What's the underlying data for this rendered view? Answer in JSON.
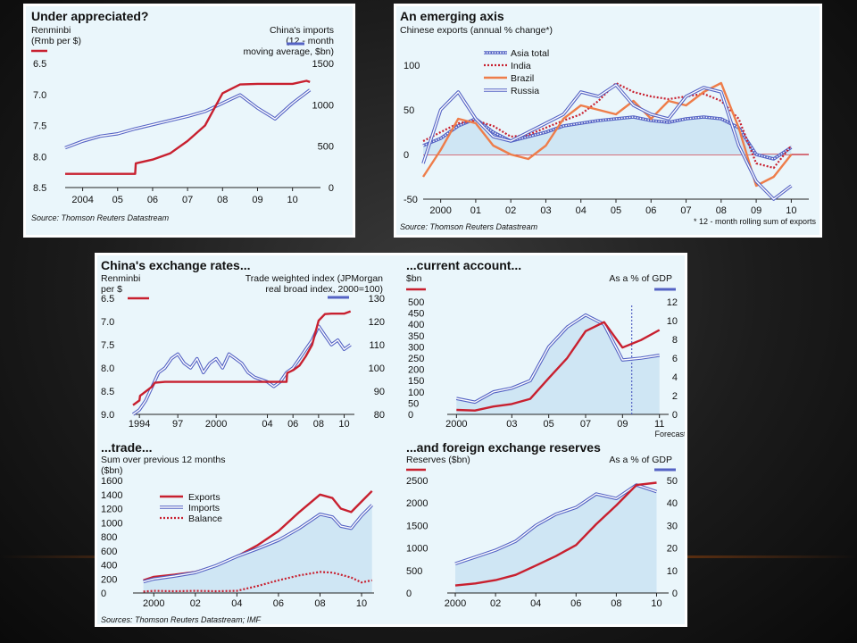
{
  "colors": {
    "red": "#c8202f",
    "blue": "#5463c4",
    "orange": "#ee7d4a",
    "fill": "#cfe6f4",
    "bg": "#eaf6fb"
  },
  "chart_data": [
    {
      "id": "under-appreciated",
      "type": "line",
      "title": "Under appreciated?",
      "left_label_1": "Renminbi",
      "left_label_2": "(Rmb per $)",
      "right_label_1": "China's imports",
      "right_label_2": "(12 - month",
      "right_label_3": "moving average, $bn)",
      "source": "Source: Thomson Reuters Datastream",
      "x_ticks": [
        "2004",
        "05",
        "06",
        "07",
        "08",
        "09",
        "10"
      ],
      "y_left_ticks": [
        "6.5",
        "7.0",
        "7.5",
        "8.0",
        "8.5"
      ],
      "y_right_ticks": [
        "1500",
        "1000",
        "500",
        "0"
      ],
      "ylim_left": [
        8.5,
        6.5
      ],
      "ylim_right": [
        0,
        1500
      ],
      "xlim": [
        2003.5,
        2010.8
      ],
      "series": [
        {
          "name": "Renminbi",
          "axis": "left",
          "color": "red",
          "x": [
            2003.5,
            2005.5,
            2005.52,
            2006.0,
            2006.5,
            2007.0,
            2007.5,
            2008.0,
            2008.5,
            2009.0,
            2009.5,
            2010.0,
            2010.4,
            2010.5
          ],
          "y": [
            8.28,
            8.28,
            8.11,
            8.05,
            7.95,
            7.75,
            7.5,
            6.98,
            6.84,
            6.83,
            6.83,
            6.83,
            6.78,
            6.8
          ]
        },
        {
          "name": "China's imports",
          "axis": "right",
          "color": "blue",
          "x": [
            2003.5,
            2004,
            2004.5,
            2005,
            2005.5,
            2006,
            2006.5,
            2007,
            2007.5,
            2008,
            2008.5,
            2009,
            2009.5,
            2010,
            2010.5
          ],
          "y": [
            480,
            560,
            620,
            650,
            710,
            760,
            810,
            860,
            920,
            1020,
            1120,
            960,
            830,
            1020,
            1180
          ]
        }
      ]
    },
    {
      "id": "emerging-axis",
      "type": "line",
      "title": "An emerging axis",
      "subtitle": "Chinese exports (annual % change*)",
      "source": "Source: Thomson Reuters Datastream",
      "footnote": "* 12 - month rolling sum of exports",
      "x_ticks": [
        "2000",
        "01",
        "02",
        "03",
        "04",
        "05",
        "06",
        "07",
        "08",
        "09",
        "10"
      ],
      "y_ticks": [
        "100",
        "50",
        "0",
        "-50"
      ],
      "ylim": [
        -50,
        100
      ],
      "xlim": [
        1999.5,
        2010.5
      ],
      "legend": [
        "Asia total",
        "India",
        "Brazil",
        "Russia"
      ],
      "series": [
        {
          "name": "Asia total",
          "color": "blue",
          "style": "dotted-double",
          "x": [
            1999.5,
            2000,
            2000.5,
            2001,
            2001.5,
            2002,
            2002.5,
            2003,
            2003.5,
            2004,
            2004.5,
            2005,
            2005.5,
            2006,
            2006.5,
            2007,
            2007.5,
            2008,
            2008.5,
            2009,
            2009.5,
            2010
          ],
          "y": [
            10,
            18,
            32,
            40,
            25,
            15,
            20,
            25,
            32,
            35,
            38,
            40,
            42,
            38,
            36,
            40,
            42,
            40,
            30,
            0,
            -5,
            8
          ]
        },
        {
          "name": "India",
          "color": "red",
          "style": "dotted",
          "x": [
            1999.5,
            2000,
            2000.5,
            2001,
            2001.5,
            2002,
            2002.5,
            2003,
            2003.5,
            2004,
            2004.5,
            2005,
            2005.5,
            2006,
            2006.5,
            2007,
            2007.5,
            2008,
            2008.5,
            2009,
            2009.5,
            2010
          ],
          "y": [
            15,
            25,
            35,
            38,
            32,
            20,
            22,
            30,
            38,
            45,
            60,
            80,
            70,
            65,
            62,
            65,
            68,
            60,
            40,
            -10,
            -15,
            10
          ]
        },
        {
          "name": "Brazil",
          "color": "orange",
          "style": "solid",
          "x": [
            1999.5,
            2000,
            2000.5,
            2001,
            2001.5,
            2002,
            2002.5,
            2003,
            2003.5,
            2004,
            2004.5,
            2005,
            2005.5,
            2006,
            2006.5,
            2007,
            2007.5,
            2008,
            2008.5,
            2009,
            2009.5,
            2010
          ],
          "y": [
            -25,
            5,
            40,
            35,
            10,
            0,
            -5,
            10,
            40,
            55,
            50,
            45,
            60,
            40,
            60,
            55,
            70,
            80,
            30,
            -35,
            -25,
            0
          ]
        },
        {
          "name": "Russia",
          "color": "blue",
          "style": "double",
          "x": [
            1999.5,
            2000,
            2000.5,
            2001,
            2001.5,
            2002,
            2002.5,
            2003,
            2003.5,
            2004,
            2004.5,
            2005,
            2005.5,
            2006,
            2006.5,
            2007,
            2007.5,
            2008,
            2008.5,
            2009,
            2009.5,
            2010
          ],
          "y": [
            -10,
            50,
            70,
            40,
            20,
            15,
            25,
            35,
            45,
            70,
            65,
            78,
            55,
            45,
            40,
            65,
            75,
            70,
            10,
            -30,
            -50,
            -35
          ]
        }
      ]
    },
    {
      "id": "exchange-rates",
      "type": "line",
      "title": "China's exchange rates...",
      "left_label_1": "Renminbi",
      "left_label_2": "per $",
      "right_label_1": "Trade weighted index (JPMorgan",
      "right_label_2": "real broad index, 2000=100)",
      "x_ticks": [
        "1994",
        "97",
        "2000",
        "04",
        "06",
        "08",
        "10"
      ],
      "y_left_ticks": [
        "6.5",
        "7.0",
        "7.5",
        "8.0",
        "8.5",
        "9.0"
      ],
      "y_right_ticks": [
        "130",
        "120",
        "110",
        "100",
        "90",
        "80"
      ],
      "ylim_left": [
        9.0,
        6.5
      ],
      "ylim_right": [
        80,
        130
      ],
      "xlim": [
        1993.5,
        2010.8
      ],
      "series": [
        {
          "name": "Renminbi per $",
          "axis": "left",
          "color": "red",
          "x": [
            1993.5,
            1994.0,
            1994.05,
            1995.0,
            1995.2,
            1996.0,
            2005.5,
            2005.55,
            2006.0,
            2006.5,
            2007.0,
            2007.5,
            2008.0,
            2008.5,
            2009.0,
            2009.5,
            2010.0,
            2010.5
          ],
          "y": [
            8.8,
            8.7,
            8.6,
            8.4,
            8.32,
            8.3,
            8.3,
            8.11,
            8.05,
            7.95,
            7.75,
            7.5,
            6.98,
            6.84,
            6.83,
            6.83,
            6.83,
            6.78
          ]
        },
        {
          "name": "Trade weighted index",
          "axis": "right",
          "color": "blue",
          "x": [
            1993.5,
            1994,
            1994.5,
            1995,
            1995.5,
            1996,
            1996.5,
            1997,
            1997.5,
            1998,
            1998.5,
            1999,
            1999.5,
            2000,
            2000.5,
            2001,
            2001.5,
            2002,
            2002.5,
            2003,
            2003.5,
            2004,
            2004.5,
            2005,
            2005.5,
            2006,
            2006.5,
            2007,
            2007.5,
            2008,
            2008.5,
            2009,
            2009.5,
            2010,
            2010.5
          ],
          "y": [
            80,
            82,
            86,
            92,
            98,
            100,
            104,
            106,
            102,
            100,
            104,
            98,
            102,
            104,
            100,
            106,
            104,
            102,
            98,
            96,
            95,
            94,
            92,
            94,
            98,
            100,
            104,
            108,
            112,
            118,
            114,
            110,
            112,
            108,
            110
          ]
        }
      ]
    },
    {
      "id": "current-account",
      "type": "area",
      "title": "...current account...",
      "left_label": "$bn",
      "right_label": "As a % of GDP",
      "forecast_label": "Forecasts",
      "x_ticks": [
        "2000",
        "03",
        "05",
        "07",
        "09",
        "11"
      ],
      "y_left_ticks": [
        "500",
        "450",
        "400",
        "350",
        "300",
        "250",
        "200",
        "150",
        "100",
        "50",
        "0"
      ],
      "y_right_ticks": [
        "12",
        "10",
        "8",
        "6",
        "4",
        "2",
        "0"
      ],
      "ylim_left": [
        0,
        500
      ],
      "ylim_right": [
        0,
        12
      ],
      "xlim": [
        1999.5,
        2011.5
      ],
      "forecast_x": 2009.5,
      "series": [
        {
          "name": "$bn",
          "axis": "left",
          "color": "red",
          "x": [
            2000,
            2001,
            2002,
            2003,
            2004,
            2005,
            2006,
            2007,
            2008,
            2009,
            2010,
            2011
          ],
          "y": [
            20,
            17,
            35,
            46,
            69,
            161,
            250,
            370,
            410,
            297,
            330,
            375
          ]
        },
        {
          "name": "As a % of GDP",
          "axis": "right",
          "color": "blue",
          "x": [
            2000,
            2001,
            2002,
            2003,
            2004,
            2005,
            2006,
            2007,
            2008,
            2009,
            2010,
            2011
          ],
          "y": [
            1.7,
            1.3,
            2.4,
            2.8,
            3.6,
            7.2,
            9.3,
            10.6,
            9.6,
            5.8,
            6.0,
            6.3
          ]
        }
      ]
    },
    {
      "id": "trade",
      "type": "line",
      "title": "...trade...",
      "subtitle_1": "Sum over previous 12 months",
      "subtitle_2": "($bn)",
      "source": "Sources: Thomson Reuters Datastream; IMF",
      "x_ticks": [
        "2000",
        "02",
        "04",
        "06",
        "08",
        "10"
      ],
      "y_ticks": [
        "1600",
        "1400",
        "1200",
        "1000",
        "800",
        "600",
        "400",
        "200",
        "0"
      ],
      "ylim": [
        0,
        1600
      ],
      "xlim": [
        1999.0,
        2010.6
      ],
      "legend": [
        "Exports",
        "Imports",
        "Balance"
      ],
      "series": [
        {
          "name": "Exports",
          "color": "red",
          "style": "solid",
          "x": [
            1999.5,
            2000,
            2001,
            2002,
            2003,
            2004,
            2005,
            2006,
            2007,
            2008,
            2008.6,
            2009,
            2009.5,
            2010,
            2010.5
          ],
          "y": [
            180,
            230,
            260,
            300,
            390,
            520,
            680,
            880,
            1150,
            1400,
            1350,
            1200,
            1150,
            1300,
            1450
          ]
        },
        {
          "name": "Imports",
          "color": "blue",
          "style": "double",
          "x": [
            1999.5,
            2000,
            2001,
            2002,
            2003,
            2004,
            2005,
            2006,
            2007,
            2008,
            2008.6,
            2009,
            2009.5,
            2010,
            2010.5
          ],
          "y": [
            160,
            200,
            240,
            290,
            390,
            520,
            630,
            750,
            920,
            1120,
            1080,
            950,
            920,
            1100,
            1250
          ]
        },
        {
          "name": "Balance",
          "color": "red",
          "style": "dotted",
          "x": [
            1999.5,
            2000,
            2001,
            2002,
            2003,
            2004,
            2005,
            2006,
            2007,
            2008,
            2008.6,
            2009,
            2009.5,
            2010,
            2010.5
          ],
          "y": [
            20,
            30,
            25,
            30,
            25,
            30,
            100,
            180,
            250,
            300,
            290,
            260,
            220,
            150,
            180
          ]
        }
      ]
    },
    {
      "id": "fx-reserves",
      "type": "area",
      "title": "...and foreign exchange reserves",
      "left_label": "Reserves ($bn)",
      "right_label": "As a % of GDP",
      "x_ticks": [
        "2000",
        "02",
        "04",
        "06",
        "08",
        "10"
      ],
      "y_left_ticks": [
        "2500",
        "2000",
        "1500",
        "1000",
        "500",
        "0"
      ],
      "y_right_ticks": [
        "50",
        "40",
        "30",
        "20",
        "10",
        "0"
      ],
      "ylim_left": [
        0,
        2500
      ],
      "ylim_right": [
        0,
        50
      ],
      "xlim": [
        1999.6,
        2010.6
      ],
      "series": [
        {
          "name": "Reserves ($bn)",
          "axis": "left",
          "color": "red",
          "x": [
            2000,
            2001,
            2002,
            2003,
            2004,
            2005,
            2006,
            2007,
            2008,
            2009,
            2010
          ],
          "y": [
            166,
            212,
            286,
            403,
            610,
            819,
            1066,
            1528,
            1946,
            2399,
            2450
          ]
        },
        {
          "name": "As a % of GDP",
          "axis": "right",
          "color": "blue",
          "x": [
            2000,
            2001,
            2002,
            2003,
            2004,
            2005,
            2006,
            2007,
            2008,
            2009,
            2010
          ],
          "y": [
            13,
            16,
            19,
            23,
            30,
            35,
            38,
            44,
            42,
            48,
            45
          ]
        }
      ]
    }
  ]
}
